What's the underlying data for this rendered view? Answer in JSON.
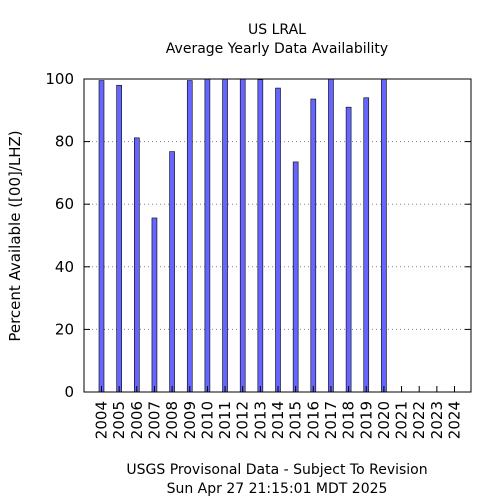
{
  "chart_data": {
    "type": "bar",
    "title": "US LRAL",
    "subtitle": "Average Yearly Data Availability",
    "ylabel": "Percent Available ([00]/LHZ)",
    "footer_line1": "USGS Provisonal Data - Subject To Revision",
    "footer_line2": "Sun Apr 27 21:15:01 MDT 2025",
    "categories": [
      "2004",
      "2005",
      "2006",
      "2007",
      "2008",
      "2009",
      "2010",
      "2011",
      "2012",
      "2013",
      "2014",
      "2015",
      "2016",
      "2017",
      "2018",
      "2019",
      "2020",
      "2021",
      "2022",
      "2023",
      "2024"
    ],
    "values": [
      99.5,
      98,
      81.2,
      55.6,
      76.8,
      99.5,
      100,
      100,
      100,
      99.8,
      97.1,
      73.5,
      93.6,
      100,
      91,
      94,
      100,
      null,
      null,
      null,
      null
    ],
    "ylim": [
      0,
      100
    ],
    "yticks": [
      0,
      20,
      40,
      60,
      80,
      100
    ],
    "grid": true,
    "bar_color": "#6666ff",
    "legend": "none"
  }
}
